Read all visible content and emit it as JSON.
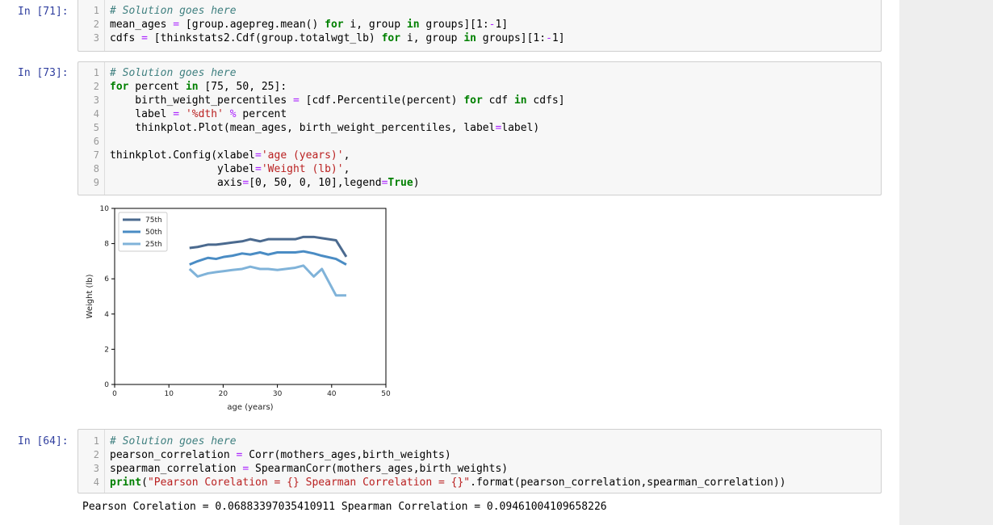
{
  "cells": [
    {
      "prompt": "In [71]:",
      "lines": [
        [
          [
            "cm",
            "# Solution goes here"
          ]
        ],
        [
          [
            "",
            "mean_ages "
          ],
          [
            "op",
            "="
          ],
          [
            "",
            " [group.agepreg.mean() "
          ],
          [
            "kw",
            "for"
          ],
          [
            "",
            " i, group "
          ],
          [
            "kw",
            "in"
          ],
          [
            "",
            " groups][1:"
          ],
          [
            "op",
            "-"
          ],
          [
            "",
            "1]"
          ]
        ],
        [
          [
            "",
            "cdfs "
          ],
          [
            "op",
            "="
          ],
          [
            "",
            " [thinkstats2.Cdf(group.totalwgt_lb) "
          ],
          [
            "kw",
            "for"
          ],
          [
            "",
            " i, group "
          ],
          [
            "kw",
            "in"
          ],
          [
            "",
            " groups][1:"
          ],
          [
            "op",
            "-"
          ],
          [
            "",
            "1]"
          ]
        ]
      ]
    },
    {
      "prompt": "In [73]:",
      "lines": [
        [
          [
            "cm",
            "# Solution goes here"
          ]
        ],
        [
          [
            "kw",
            "for"
          ],
          [
            "",
            " percent "
          ],
          [
            "kw",
            "in"
          ],
          [
            "",
            " [75, 50, 25]:"
          ]
        ],
        [
          [
            "",
            "    birth_weight_percentiles "
          ],
          [
            "op",
            "="
          ],
          [
            "",
            " [cdf.Percentile(percent) "
          ],
          [
            "kw",
            "for"
          ],
          [
            "",
            " cdf "
          ],
          [
            "kw",
            "in"
          ],
          [
            "",
            " cdfs]"
          ]
        ],
        [
          [
            "",
            "    label "
          ],
          [
            "op",
            "="
          ],
          [
            "",
            " "
          ],
          [
            "str",
            "'%dth'"
          ],
          [
            "",
            " "
          ],
          [
            "op",
            "%"
          ],
          [
            "",
            " percent"
          ]
        ],
        [
          [
            "",
            "    thinkplot.Plot(mean_ages, birth_weight_percentiles, label"
          ],
          [
            "op",
            "="
          ],
          [
            "",
            "label)"
          ]
        ],
        [
          [
            "",
            ""
          ]
        ],
        [
          [
            "",
            "thinkplot.Config(xlabel"
          ],
          [
            "op",
            "="
          ],
          [
            "str",
            "'age (years)'"
          ],
          [
            "",
            ","
          ]
        ],
        [
          [
            "",
            "                 ylabel"
          ],
          [
            "op",
            "="
          ],
          [
            "str",
            "'Weight (lb)'"
          ],
          [
            "",
            ","
          ]
        ],
        [
          [
            "",
            "                 axis"
          ],
          [
            "op",
            "="
          ],
          [
            "",
            "[0, 50, 0, 10],legend"
          ],
          [
            "op",
            "="
          ],
          [
            "kw",
            "True"
          ],
          [
            "",
            ")"
          ]
        ]
      ]
    },
    {
      "prompt": "In [64]:",
      "lines": [
        [
          [
            "cm",
            "# Solution goes here"
          ]
        ],
        [
          [
            "",
            "pearson_correlation "
          ],
          [
            "op",
            "="
          ],
          [
            "",
            " Corr(mothers_ages,birth_weights)"
          ]
        ],
        [
          [
            "",
            "spearman_correlation "
          ],
          [
            "op",
            "="
          ],
          [
            "",
            " SpearmanCorr(mothers_ages,birth_weights)"
          ]
        ],
        [
          [
            "kw",
            "print"
          ],
          [
            "",
            "("
          ],
          [
            "str",
            "\"Pearson Corelation = {} Spearman Correlation = {}\""
          ],
          [
            "",
            ".format(pearson_correlation,spearman_correlation))"
          ]
        ]
      ]
    }
  ],
  "output": "Pearson Corelation = 0.06883397035410911 Spearman Correlation = 0.09461004109658226",
  "chart_data": {
    "type": "line",
    "xlabel": "age (years)",
    "ylabel": "Weight (lb)",
    "xlim": [
      0,
      50
    ],
    "ylim": [
      0,
      10
    ],
    "xticks": [
      0,
      10,
      20,
      30,
      40,
      50
    ],
    "yticks": [
      0,
      2,
      4,
      6,
      8,
      10
    ],
    "legend_position": "top-left",
    "x": [
      13.8,
      15.3,
      17.2,
      18.7,
      20.2,
      21.7,
      23.5,
      25.0,
      26.8,
      28.3,
      30.0,
      31.5,
      33.3,
      34.8,
      36.7,
      38.2,
      40.8,
      42.7
    ],
    "series": [
      {
        "name": "75th",
        "color": "#4b6a8f",
        "values": [
          7.75,
          7.81,
          7.94,
          7.94,
          8.0,
          8.06,
          8.13,
          8.25,
          8.13,
          8.25,
          8.25,
          8.25,
          8.25,
          8.38,
          8.38,
          8.31,
          8.19,
          7.25
        ]
      },
      {
        "name": "50th",
        "color": "#4a8cc4",
        "values": [
          6.81,
          7.0,
          7.19,
          7.13,
          7.25,
          7.31,
          7.44,
          7.38,
          7.5,
          7.38,
          7.5,
          7.5,
          7.5,
          7.56,
          7.44,
          7.31,
          7.13,
          6.81
        ]
      },
      {
        "name": "25th",
        "color": "#80b3d9",
        "values": [
          6.56,
          6.13,
          6.31,
          6.38,
          6.44,
          6.5,
          6.56,
          6.69,
          6.56,
          6.56,
          6.5,
          6.56,
          6.63,
          6.75,
          6.13,
          6.56,
          5.06,
          5.06
        ]
      }
    ]
  }
}
